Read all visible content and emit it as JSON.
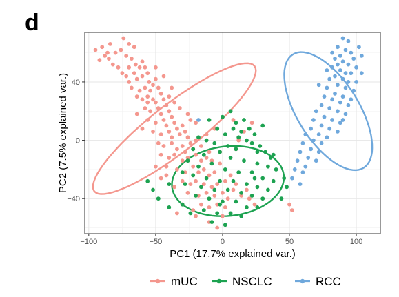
{
  "panel_label": "d",
  "chart_data": {
    "type": "scatter",
    "title": "",
    "xlabel": "PC1 (17.7% explained var.)",
    "ylabel": "PC2 (7.5% explained var.)",
    "xlim": [
      -103,
      118
    ],
    "ylim": [
      -64,
      74
    ],
    "xticks": [
      -100,
      -50,
      0,
      50,
      100
    ],
    "xtick_labels": [
      "−100",
      "−50",
      "0",
      "50",
      "100"
    ],
    "yticks": [
      -40,
      0,
      40
    ],
    "ytick_labels": [
      "−40",
      "0",
      "40"
    ],
    "grid": true,
    "legend_position": "bottom",
    "series": [
      {
        "name": "mUC",
        "color": "#F4978E",
        "points": [
          [
            -95,
            62
          ],
          [
            -90,
            64
          ],
          [
            -88,
            58
          ],
          [
            -92,
            55
          ],
          [
            -85,
            56
          ],
          [
            -82,
            52
          ],
          [
            -80,
            60
          ],
          [
            -76,
            62
          ],
          [
            -74,
            70
          ],
          [
            -70,
            66
          ],
          [
            -72,
            58
          ],
          [
            -68,
            56
          ],
          [
            -78,
            50
          ],
          [
            -65,
            52
          ],
          [
            -62,
            50
          ],
          [
            -60,
            54
          ],
          [
            -58,
            50
          ],
          [
            -66,
            46
          ],
          [
            -72,
            44
          ],
          [
            -75,
            46
          ],
          [
            -70,
            40
          ],
          [
            -64,
            42
          ],
          [
            -60,
            44
          ],
          [
            -56,
            46
          ],
          [
            -55,
            40
          ],
          [
            -52,
            38
          ],
          [
            -50,
            42
          ],
          [
            -68,
            36
          ],
          [
            -62,
            34
          ],
          [
            -58,
            36
          ],
          [
            -54,
            34
          ],
          [
            -48,
            36
          ],
          [
            -46,
            32
          ],
          [
            -64,
            30
          ],
          [
            -60,
            28
          ],
          [
            -56,
            30
          ],
          [
            -52,
            28
          ],
          [
            -50,
            26
          ],
          [
            -44,
            28
          ],
          [
            -42,
            24
          ],
          [
            -58,
            22
          ],
          [
            -54,
            20
          ],
          [
            -48,
            22
          ],
          [
            -46,
            18
          ],
          [
            -40,
            20
          ],
          [
            -38,
            16
          ],
          [
            -56,
            14
          ],
          [
            -50,
            12
          ],
          [
            -44,
            14
          ],
          [
            -42,
            10
          ],
          [
            -36,
            12
          ],
          [
            -34,
            8
          ],
          [
            -30,
            10
          ],
          [
            -52,
            6
          ],
          [
            -46,
            4
          ],
          [
            -40,
            6
          ],
          [
            -38,
            2
          ],
          [
            -32,
            4
          ],
          [
            -28,
            6
          ],
          [
            -26,
            2
          ],
          [
            -48,
            -2
          ],
          [
            -44,
            -4
          ],
          [
            -38,
            -2
          ],
          [
            -34,
            -6
          ],
          [
            -30,
            -4
          ],
          [
            -24,
            -2
          ],
          [
            -22,
            -6
          ],
          [
            -20,
            0
          ],
          [
            -46,
            -10
          ],
          [
            -40,
            -12
          ],
          [
            -36,
            -10
          ],
          [
            -30,
            -14
          ],
          [
            -26,
            -12
          ],
          [
            -20,
            -10
          ],
          [
            -16,
            -14
          ],
          [
            -12,
            -12
          ],
          [
            -42,
            -18
          ],
          [
            -34,
            -20
          ],
          [
            -28,
            -22
          ],
          [
            -22,
            -18
          ],
          [
            -18,
            -22
          ],
          [
            -14,
            -20
          ],
          [
            -10,
            -24
          ],
          [
            -6,
            -22
          ],
          [
            -30,
            -28
          ],
          [
            -24,
            -30
          ],
          [
            -20,
            -28
          ],
          [
            -14,
            -30
          ],
          [
            -8,
            -32
          ],
          [
            -4,
            -30
          ],
          [
            -26,
            -36
          ],
          [
            -18,
            -38
          ],
          [
            -12,
            -36
          ],
          [
            -6,
            -38
          ],
          [
            0,
            -36
          ],
          [
            -16,
            -44
          ],
          [
            -10,
            -46
          ],
          [
            -4,
            -44
          ],
          [
            2,
            -46
          ],
          [
            -30,
            -44
          ],
          [
            -34,
            -50
          ],
          [
            -22,
            -48
          ],
          [
            0,
            -52
          ],
          [
            -4,
            -60
          ],
          [
            -10,
            -56
          ],
          [
            4,
            -40
          ],
          [
            8,
            -34
          ],
          [
            10,
            -30
          ],
          [
            14,
            -38
          ],
          [
            18,
            -34
          ],
          [
            -20,
            12
          ],
          [
            -26,
            18
          ],
          [
            -32,
            22
          ],
          [
            -36,
            26
          ],
          [
            -44,
            44
          ],
          [
            -38,
            36
          ],
          [
            -84,
            66
          ],
          [
            -66,
            64
          ],
          [
            -50,
            50
          ],
          [
            -28,
            -8
          ],
          [
            -16,
            -4
          ],
          [
            -10,
            -8
          ],
          [
            -2,
            -16
          ],
          [
            -60,
            8
          ],
          [
            -64,
            18
          ],
          [
            -56,
            26
          ],
          [
            -46,
            -26
          ],
          [
            -50,
            -18
          ],
          [
            2,
            -28
          ],
          [
            6,
            -24
          ],
          [
            -8,
            -14
          ],
          [
            -2,
            -8
          ],
          [
            20,
            -40
          ],
          [
            24,
            -44
          ],
          [
            -12,
            4
          ],
          [
            -24,
            14
          ],
          [
            -40,
            30
          ],
          [
            -70,
            50
          ],
          [
            -86,
            60
          ],
          [
            -20,
            -52
          ],
          [
            12,
            0
          ],
          [
            16,
            6
          ],
          [
            10,
            -6
          ],
          [
            -6,
            8
          ],
          [
            22,
            12
          ],
          [
            8,
            14
          ],
          [
            50,
            -44
          ],
          [
            52,
            -48
          ],
          [
            -36,
            -32
          ],
          [
            -42,
            -24
          ]
        ]
      },
      {
        "name": "NSCLC",
        "color": "#1DA251",
        "points": [
          [
            10,
            12
          ],
          [
            16,
            14
          ],
          [
            8,
            8
          ],
          [
            14,
            6
          ],
          [
            20,
            8
          ],
          [
            24,
            4
          ],
          [
            -4,
            8
          ],
          [
            2,
            4
          ],
          [
            12,
            2
          ],
          [
            18,
            0
          ],
          [
            22,
            -2
          ],
          [
            -18,
            2
          ],
          [
            -12,
            0
          ],
          [
            -6,
            -2
          ],
          [
            4,
            -4
          ],
          [
            10,
            -6
          ],
          [
            28,
            -4
          ],
          [
            32,
            -8
          ],
          [
            36,
            -12
          ],
          [
            -22,
            -6
          ],
          [
            -14,
            -10
          ],
          [
            -2,
            -8
          ],
          [
            6,
            -12
          ],
          [
            16,
            -14
          ],
          [
            26,
            -16
          ],
          [
            34,
            -18
          ],
          [
            40,
            -20
          ],
          [
            -26,
            -14
          ],
          [
            -18,
            -18
          ],
          [
            -8,
            -16
          ],
          [
            2,
            -20
          ],
          [
            12,
            -22
          ],
          [
            22,
            -22
          ],
          [
            30,
            -26
          ],
          [
            38,
            -28
          ],
          [
            -30,
            -22
          ],
          [
            -22,
            -24
          ],
          [
            -12,
            -26
          ],
          [
            -2,
            -28
          ],
          [
            8,
            -28
          ],
          [
            18,
            -30
          ],
          [
            26,
            -32
          ],
          [
            34,
            -34
          ],
          [
            -40,
            -30
          ],
          [
            -28,
            -30
          ],
          [
            -16,
            -32
          ],
          [
            -6,
            -34
          ],
          [
            4,
            -34
          ],
          [
            14,
            -36
          ],
          [
            22,
            -38
          ],
          [
            30,
            -40
          ],
          [
            -20,
            -38
          ],
          [
            -10,
            -40
          ],
          [
            0,
            -42
          ],
          [
            10,
            -42
          ],
          [
            18,
            -46
          ],
          [
            26,
            -46
          ],
          [
            -40,
            -46
          ],
          [
            -30,
            -44
          ],
          [
            -14,
            -48
          ],
          [
            -4,
            -50
          ],
          [
            6,
            -50
          ],
          [
            14,
            -52
          ],
          [
            -24,
            -50
          ],
          [
            -8,
            -56
          ],
          [
            2,
            -58
          ],
          [
            -56,
            -28
          ],
          [
            -52,
            -34
          ],
          [
            -48,
            -40
          ],
          [
            46,
            -26
          ],
          [
            48,
            -32
          ],
          [
            44,
            -40
          ],
          [
            38,
            -10
          ],
          [
            30,
            10
          ],
          [
            26,
            -8
          ],
          [
            -10,
            14
          ],
          [
            0,
            16
          ],
          [
            6,
            20
          ],
          [
            -2,
            -44
          ],
          [
            24,
            -26
          ]
        ]
      },
      {
        "name": "RCC",
        "color": "#6FA8DC",
        "points": [
          [
            90,
            70
          ],
          [
            94,
            68
          ],
          [
            86,
            64
          ],
          [
            92,
            62
          ],
          [
            96,
            60
          ],
          [
            88,
            58
          ],
          [
            98,
            56
          ],
          [
            84,
            56
          ],
          [
            90,
            54
          ],
          [
            94,
            52
          ],
          [
            86,
            52
          ],
          [
            100,
            50
          ],
          [
            82,
            50
          ],
          [
            88,
            48
          ],
          [
            92,
            46
          ],
          [
            96,
            46
          ],
          [
            84,
            44
          ],
          [
            90,
            42
          ],
          [
            94,
            40
          ],
          [
            80,
            42
          ],
          [
            86,
            38
          ],
          [
            92,
            36
          ],
          [
            98,
            34
          ],
          [
            78,
            36
          ],
          [
            84,
            32
          ],
          [
            90,
            30
          ],
          [
            96,
            28
          ],
          [
            76,
            30
          ],
          [
            82,
            28
          ],
          [
            88,
            26
          ],
          [
            74,
            24
          ],
          [
            80,
            22
          ],
          [
            86,
            20
          ],
          [
            92,
            18
          ],
          [
            70,
            20
          ],
          [
            76,
            16
          ],
          [
            82,
            14
          ],
          [
            88,
            12
          ],
          [
            68,
            14
          ],
          [
            74,
            10
          ],
          [
            80,
            8
          ],
          [
            86,
            6
          ],
          [
            66,
            8
          ],
          [
            72,
            4
          ],
          [
            78,
            2
          ],
          [
            62,
            4
          ],
          [
            68,
            0
          ],
          [
            74,
            -2
          ],
          [
            60,
            -2
          ],
          [
            66,
            -6
          ],
          [
            72,
            -8
          ],
          [
            58,
            -8
          ],
          [
            64,
            -12
          ],
          [
            70,
            -14
          ],
          [
            56,
            -14
          ],
          [
            62,
            -18
          ],
          [
            54,
            -20
          ],
          [
            60,
            -22
          ],
          [
            52,
            -26
          ],
          [
            58,
            -30
          ],
          [
            102,
            64
          ],
          [
            104,
            58
          ],
          [
            100,
            40
          ],
          [
            94,
            24
          ],
          [
            90,
            14
          ],
          [
            78,
            48
          ],
          [
            72,
            38
          ],
          [
            -18,
            14
          ],
          [
            104,
            46
          ],
          [
            82,
            60
          ]
        ]
      }
    ],
    "ellipses": [
      {
        "series": "mUC",
        "cx": -36,
        "cy": 8,
        "rx": 76,
        "ry": 18,
        "angle_deg": -38,
        "color": "#F4978E"
      },
      {
        "series": "NSCLC",
        "cx": 4,
        "cy": -28,
        "rx": 42,
        "ry": 26,
        "angle_deg": -6,
        "color": "#1DA251"
      },
      {
        "series": "RCC",
        "cx": 79,
        "cy": 20,
        "rx": 50,
        "ry": 23,
        "angle_deg": 58,
        "color": "#6FA8DC"
      }
    ]
  }
}
